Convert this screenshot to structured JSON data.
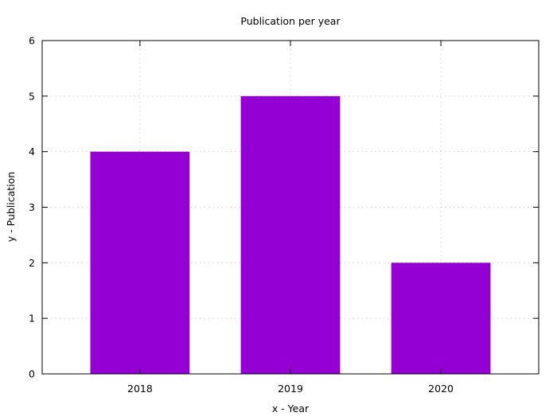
{
  "colors": {
    "bar": "#9400d3",
    "axis": "#000000",
    "background": "#ffffff"
  },
  "chart_data": {
    "type": "bar",
    "title": "Publication per year",
    "xlabel": "x - Year",
    "ylabel": "y - Publication",
    "categories": [
      "2018",
      "2019",
      "2020"
    ],
    "values": [
      4,
      5,
      2
    ],
    "ylim": [
      0,
      6
    ],
    "yticks": [
      0,
      1,
      2,
      3,
      4,
      5,
      6
    ],
    "grid": true,
    "legend": "none"
  }
}
